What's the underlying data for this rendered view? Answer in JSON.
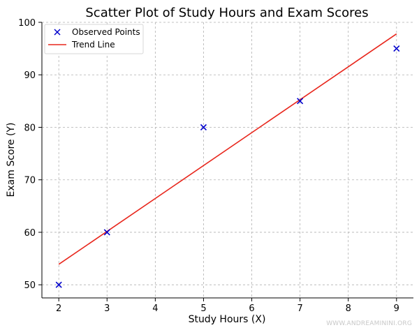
{
  "chart_data": {
    "type": "scatter",
    "title": "Scatter Plot of Study Hours and Exam Scores",
    "xlabel": "Study Hours (X)",
    "ylabel": "Exam Score (Y)",
    "xlim": [
      1.65,
      9.35
    ],
    "ylim": [
      47.5,
      100
    ],
    "xticks": [
      2,
      3,
      4,
      5,
      6,
      7,
      8,
      9
    ],
    "yticks": [
      50,
      60,
      70,
      80,
      90,
      100
    ],
    "grid": true,
    "legend_position": "top-left",
    "series": [
      {
        "name": "Observed Points",
        "kind": "scatter",
        "marker": "x",
        "color": "#0000cc",
        "x": [
          2,
          3,
          5,
          7,
          9
        ],
        "y": [
          50,
          60,
          80,
          85,
          95
        ]
      },
      {
        "name": "Trend Line",
        "kind": "line",
        "color": "#e8261c",
        "x": [
          2,
          9
        ],
        "y": [
          53.9,
          97.8
        ]
      }
    ]
  },
  "watermark": "WWW.ANDREAMININI.ORG"
}
